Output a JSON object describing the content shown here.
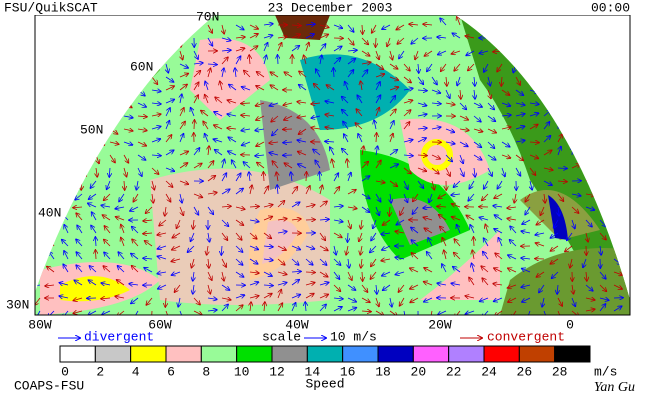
{
  "header": {
    "left": "FSU/QuikSCAT",
    "center": "23 December 2003",
    "right": "00:00"
  },
  "map": {
    "lat_labels": [
      "70N",
      "60N",
      "50N",
      "40N",
      "30N"
    ],
    "lon_labels": [
      "80W",
      "60W",
      "40W",
      "20W",
      "0"
    ]
  },
  "legend": {
    "divergent": "divergent",
    "scale": "scale",
    "scale_value": "10 m/s",
    "convergent": "convergent"
  },
  "colorbar": {
    "ticks": [
      0,
      2,
      4,
      6,
      8,
      10,
      12,
      14,
      16,
      18,
      20,
      22,
      24,
      26,
      28
    ],
    "colors": [
      "#ffffff",
      "#c8c8c8",
      "#ffff00",
      "#ffc0c0",
      "#98fb98",
      "#00e000",
      "#909090",
      "#00b0b0",
      "#4090ff",
      "#0000c0",
      "#ff60ff",
      "#b080ff",
      "#ff0000",
      "#c04000",
      "#000000"
    ],
    "unit": "m/s",
    "label": "Speed"
  },
  "footer": {
    "left": "COAPS-FSU",
    "right": "Yan Gu"
  }
}
